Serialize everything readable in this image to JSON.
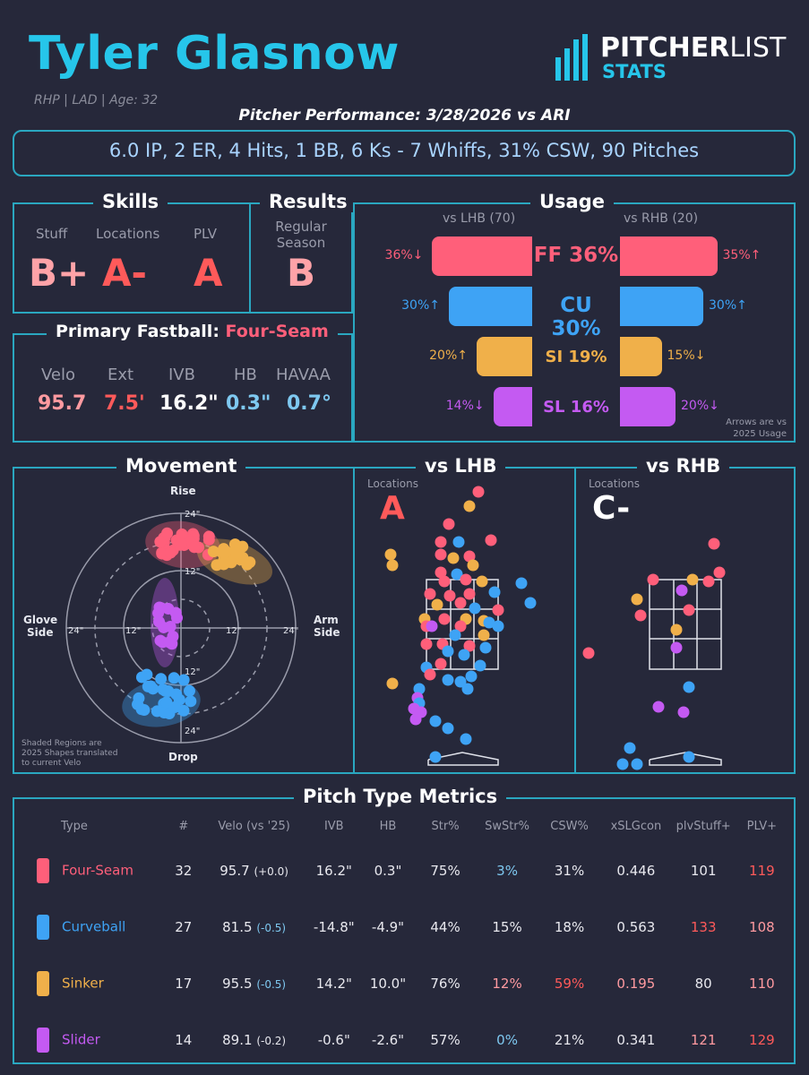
{
  "header": {
    "name": "Tyler Glasnow",
    "bio": "RHP | LAD | Age: 32",
    "performance": "Pitcher Performance: 3/28/2026 vs ARI",
    "summary": "6.0 IP, 2 ER, 4 Hits, 1 BB, 6 Ks - 7 Whiffs, 31% CSW, 90 Pitches"
  },
  "logo": {
    "main_a": "PITCHER",
    "main_b": "LIST",
    "sub": "STATS"
  },
  "skills": {
    "title": "Skills",
    "stuff_label": "Stuff",
    "stuff": "B+",
    "locations_label": "Locations",
    "locations": "A-",
    "plv_label": "PLV",
    "plv": "A"
  },
  "results": {
    "title": "Results",
    "label1": "Regular",
    "label2": "Season",
    "grade": "B"
  },
  "fastball": {
    "title": "Primary Fastball:",
    "type": "Four-Seam",
    "velo_label": "Velo",
    "velo": "95.7",
    "ext_label": "Ext",
    "ext": "7.5'",
    "ivb_label": "IVB",
    "ivb": "16.2\"",
    "hb_label": "HB",
    "hb": "0.3\"",
    "havaa_label": "HAVAA",
    "havaa": "0.7°"
  },
  "usage": {
    "title": "Usage",
    "lhb_header": "vs LHB (70)",
    "rhb_header": "vs RHB (20)",
    "note1": "Arrows are vs",
    "note2": "2025 Usage",
    "rows": [
      {
        "label": "FF 36%",
        "lhb": "36%↓",
        "rhb": "35%↑",
        "lhb_value": 36,
        "rhb_value": 35,
        "color": "#ff5f7a"
      },
      {
        "label": "CU 30%",
        "lhb": "30%↑",
        "rhb": "30%↑",
        "lhb_value": 30,
        "rhb_value": 30,
        "color": "#3ea3f5"
      },
      {
        "label": "SI 19%",
        "lhb": "20%↑",
        "rhb": "15%↓",
        "lhb_value": 20,
        "rhb_value": 15,
        "color": "#f0b04a"
      },
      {
        "label": "SL 16%",
        "lhb": "14%↓",
        "rhb": "20%↓",
        "lhb_value": 14,
        "rhb_value": 20,
        "color": "#c45af2"
      }
    ]
  },
  "movement": {
    "title": "Movement",
    "rise": "Rise",
    "drop": "Drop",
    "glove1": "Glove",
    "glove2": "Side",
    "arm1": "Arm",
    "arm2": "Side",
    "r24_top": "24\"",
    "r12_top": "12\"",
    "r12_bot": "12\"",
    "r24_bot": "24\"",
    "r24_left": "24\"",
    "r12_left": "12\"",
    "r12_right": "12\"",
    "r24_right": "24\"",
    "note1": "Shaded Regions are",
    "note2": "2025 Shapes translated",
    "note3": "to current Velo"
  },
  "vs_lhb": {
    "title": "vs LHB",
    "locations_label": "Locations",
    "grade": "A"
  },
  "vs_rhb": {
    "title": "vs RHB",
    "locations_label": "Locations",
    "grade": "C-"
  },
  "metrics": {
    "title": "Pitch Type Metrics",
    "columns": [
      "Type",
      "#",
      "Velo (vs '25)",
      "IVB",
      "HB",
      "Str%",
      "SwStr%",
      "CSW%",
      "xSLGcon",
      "plvStuff+",
      "PLV+"
    ],
    "rows": [
      {
        "type": "Four-Seam",
        "count": "32",
        "velo": "95.7",
        "velo_delta": "(+0.0)",
        "ivb": "16.2\"",
        "hb": "0.3\"",
        "str": "75%",
        "swstr": "3%",
        "csw": "31%",
        "xslg": "0.446",
        "stuff": "101",
        "plv": "119"
      },
      {
        "type": "Curveball",
        "count": "27",
        "velo": "81.5",
        "velo_delta": "(-0.5)",
        "ivb": "-14.8\"",
        "hb": "-4.9\"",
        "str": "44%",
        "swstr": "15%",
        "csw": "18%",
        "xslg": "0.563",
        "stuff": "133",
        "plv": "108"
      },
      {
        "type": "Sinker",
        "count": "17",
        "velo": "95.5",
        "velo_delta": "(-0.5)",
        "ivb": "14.2\"",
        "hb": "10.0\"",
        "str": "76%",
        "swstr": "12%",
        "csw": "59%",
        "xslg": "0.195",
        "stuff": "80",
        "plv": "110"
      },
      {
        "type": "Slider",
        "count": "14",
        "velo": "89.1",
        "velo_delta": "(-0.2)",
        "ivb": "-0.6\"",
        "hb": "-2.6\"",
        "str": "57%",
        "swstr": "0%",
        "csw": "21%",
        "xslg": "0.341",
        "stuff": "121",
        "plv": "129"
      }
    ]
  },
  "colors": {
    "fourseam": "#ff5f7a",
    "curveball": "#3ea3f5",
    "sinker": "#f0b04a",
    "slider": "#c45af2",
    "accent": "#2aa7c0"
  }
}
